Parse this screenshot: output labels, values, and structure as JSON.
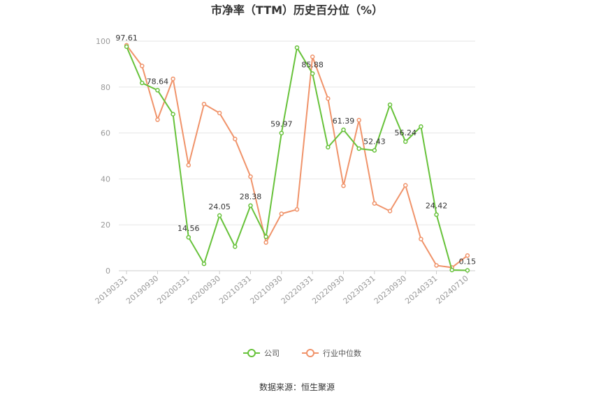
{
  "chart_data": {
    "type": "line",
    "title": "市净率（TTM）历史百分位（%）",
    "source": "数据来源：恒生聚源",
    "ylim": [
      0,
      100
    ],
    "y_ticks": [
      0,
      20,
      40,
      60,
      80,
      100
    ],
    "x_tick_labels": [
      "20190331",
      "20190930",
      "20200331",
      "20200930",
      "20210331",
      "20210930",
      "20220331",
      "20220930",
      "20230331",
      "20230930",
      "20240331",
      "20240710"
    ],
    "legend_position": "bottom",
    "series": [
      {
        "name": "公司",
        "color": "#67c23a",
        "values": [
          97.61,
          81.8,
          78.64,
          68.2,
          14.56,
          3.0,
          24.05,
          10.5,
          28.38,
          14.8,
          59.97,
          97.2,
          85.88,
          53.8,
          61.39,
          53.2,
          52.43,
          72.3,
          56.24,
          62.8,
          24.42,
          0.3,
          0.15
        ],
        "labels": {
          "0": "97.61",
          "2": "78.64",
          "4": "14.56",
          "6": "24.05",
          "8": "28.38",
          "10": "59.97",
          "12": "85.88",
          "14": "61.39",
          "16": "52.43",
          "18": "56.24",
          "20": "24.42",
          "22": "0.15"
        }
      },
      {
        "name": "行业中位数",
        "color": "#f0936a",
        "values": [
          98.2,
          89.2,
          65.8,
          83.6,
          46.0,
          72.6,
          68.7,
          57.4,
          41.0,
          12.3,
          24.8,
          26.7,
          93.2,
          75.0,
          37.0,
          65.6,
          29.3,
          26.0,
          37.2,
          13.8,
          2.3,
          1.4,
          6.6
        ],
        "labels": {}
      }
    ]
  }
}
